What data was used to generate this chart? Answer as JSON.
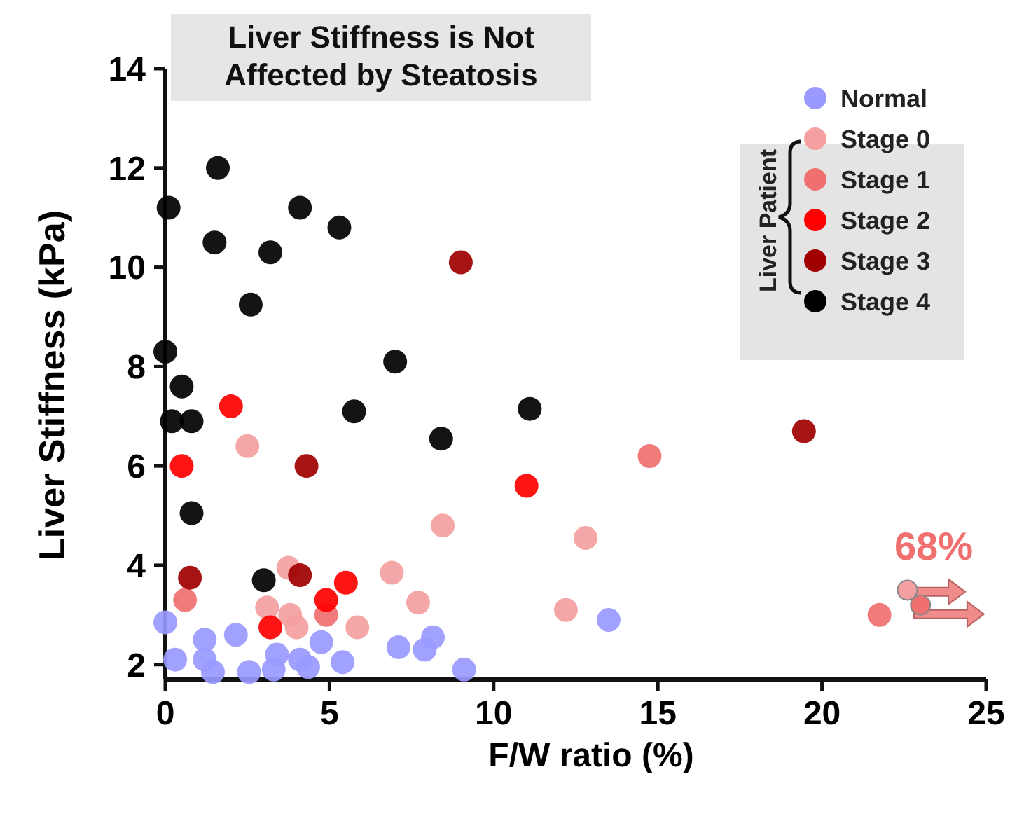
{
  "chart_data": {
    "type": "scatter",
    "title": "Liver Stiffness is Not Affected by Steatosis",
    "xlabel": "F/W ratio (%)",
    "ylabel": "Liver Stiffness (kPa)",
    "legend_title": "Liver Patient",
    "annotations": [
      "68%"
    ],
    "xlim": [
      0,
      25
    ],
    "xticks": [
      0,
      5,
      10,
      15,
      20,
      25
    ],
    "ylim": [
      1.7,
      14
    ],
    "yticks": [
      2,
      4,
      6,
      8,
      10,
      12,
      14
    ],
    "grid": false,
    "legend": "top right",
    "marker": "circle",
    "series": [
      {
        "name": "Normal",
        "color": "#9999ff",
        "x": [
          0,
          2.15,
          1.2,
          0.3,
          1.2,
          1.45,
          2.55,
          3.3,
          3.4,
          4.1,
          4.35,
          4.75,
          5.4,
          7.1,
          7.9,
          8.15,
          9.1,
          13.5
        ],
        "values": [
          2.85,
          2.6,
          2.5,
          2.1,
          2.1,
          1.85,
          1.85,
          1.9,
          2.2,
          2.1,
          1.95,
          2.45,
          2.05,
          2.35,
          2.3,
          2.55,
          1.9,
          2.9
        ]
      },
      {
        "name": "Stage 0",
        "color": "#f4a0a0",
        "x": [
          2.5,
          8.45,
          12.8,
          12.2,
          7.7,
          6.9,
          5.85,
          3.75,
          3.1,
          3.8,
          4.0
        ],
        "values": [
          6.4,
          4.8,
          4.55,
          3.1,
          3.25,
          3.85,
          2.75,
          3.95,
          3.15,
          3.0,
          2.75
        ]
      },
      {
        "name": "Stage 1",
        "color": "#f07070",
        "x": [
          14.75,
          21.75,
          0.6,
          4.9
        ],
        "values": [
          6.2,
          3.0,
          3.3,
          3.0
        ]
      },
      {
        "name": "Stage 2",
        "color": "#ff0000",
        "x": [
          2.0,
          0.5,
          11.0,
          5.5,
          4.9,
          3.2
        ],
        "values": [
          7.2,
          6.0,
          5.6,
          3.65,
          3.3,
          2.75
        ]
      },
      {
        "name": "Stage 3",
        "color": "#a00000",
        "x": [
          9.0,
          4.3,
          19.45,
          0.75,
          4.1
        ],
        "values": [
          10.1,
          6.0,
          6.7,
          3.75,
          3.8
        ]
      },
      {
        "name": "Stage 4",
        "color": "#000000",
        "x": [
          1.6,
          0.1,
          4.1,
          5.3,
          1.5,
          3.2,
          2.6,
          0,
          7.0,
          0.5,
          0.2,
          0.8,
          5.75,
          11.1,
          8.4,
          0.8,
          3.0
        ],
        "values": [
          12.0,
          11.2,
          11.2,
          10.8,
          10.5,
          10.3,
          9.25,
          8.3,
          8.1,
          7.6,
          6.9,
          6.9,
          7.1,
          7.15,
          6.55,
          5.05,
          3.7
        ]
      }
    ]
  }
}
